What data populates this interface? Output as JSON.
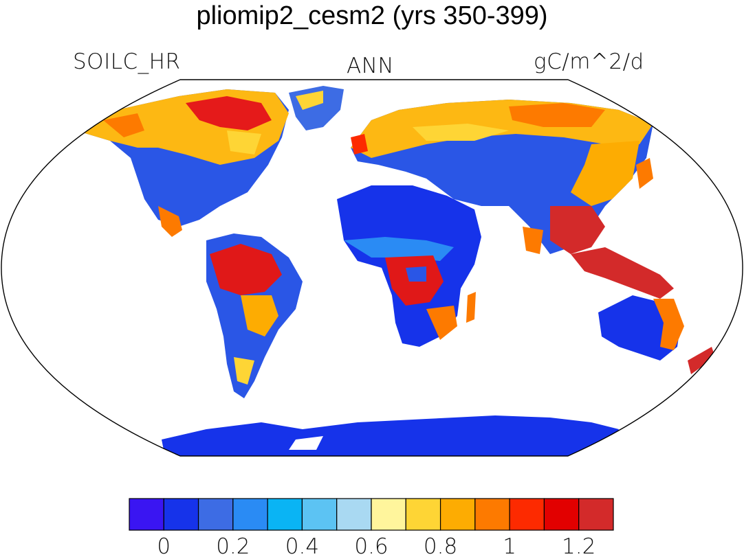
{
  "title": "pliomip2_cesm2 (yrs 350-399)",
  "variable": "SOILC_HR",
  "period": "ANN",
  "units": "gC/m^2/d",
  "colorbar": {
    "colors": [
      "#3a15f2",
      "#1633ea",
      "#3d6ce4",
      "#2a8bf4",
      "#0ab4f4",
      "#5cc3f3",
      "#a9d9f2",
      "#fff59c",
      "#fed535",
      "#fdac02",
      "#fd7a00",
      "#fd2a00",
      "#e20000",
      "#d32a2a"
    ],
    "tick_labels": [
      "0",
      "0.2",
      "0.4",
      "0.6",
      "0.8",
      "1",
      "1.2"
    ]
  }
}
